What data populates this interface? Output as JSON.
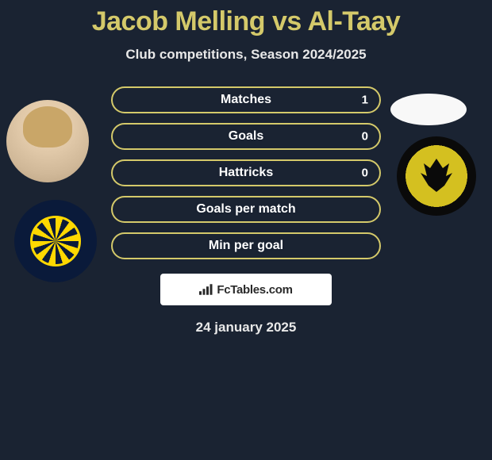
{
  "title": "Jacob Melling vs Al-Taay",
  "subtitle": "Club competitions, Season 2024/2025",
  "date": "24 january 2025",
  "brand": "FcTables.com",
  "colors": {
    "accent": "#d4c96a",
    "background": "#1a2332",
    "text": "#ffffff",
    "brand_box_bg": "#ffffff",
    "brand_text": "#2a2a2a"
  },
  "stats": [
    {
      "label": "Matches",
      "right_value": "1",
      "fill_percent": 0
    },
    {
      "label": "Goals",
      "right_value": "0",
      "fill_percent": 0
    },
    {
      "label": "Hattricks",
      "right_value": "0",
      "fill_percent": 0
    },
    {
      "label": "Goals per match",
      "right_value": "",
      "fill_percent": 0
    },
    {
      "label": "Min per goal",
      "right_value": "",
      "fill_percent": 0
    }
  ],
  "left_player_name": "Jacob Melling",
  "right_player_name": "Al-Taay",
  "left_club_logo": "central-coast-mariners-logo",
  "right_club_logo": "wellington-phoenix-logo"
}
